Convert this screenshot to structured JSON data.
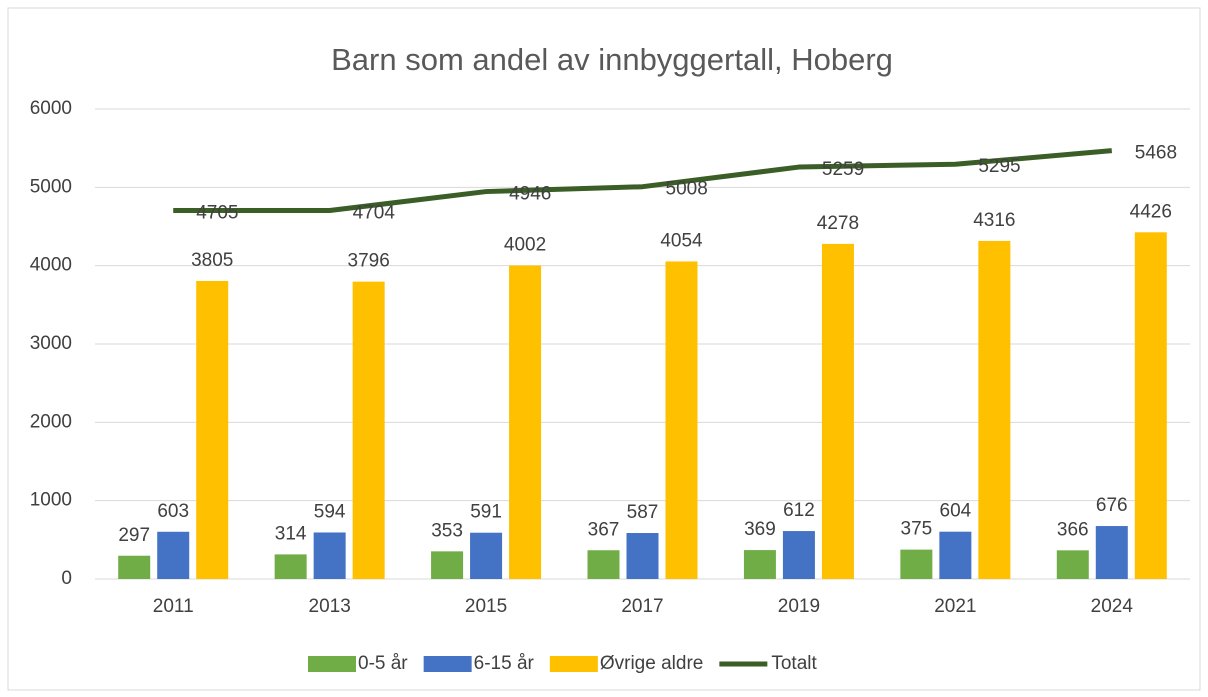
{
  "chart_data": {
    "type": "bar",
    "title": "Barn som andel av innbyggertall, Hoberg",
    "categories": [
      "2011",
      "2013",
      "2015",
      "2017",
      "2019",
      "2021",
      "2024"
    ],
    "series": [
      {
        "name": "0-5 år",
        "color": "#70ad47",
        "values": [
          297,
          314,
          353,
          367,
          369,
          375,
          366
        ]
      },
      {
        "name": "6-15 år",
        "color": "#4472c4",
        "values": [
          603,
          594,
          591,
          587,
          612,
          604,
          676
        ]
      },
      {
        "name": "Øvrige aldre",
        "color": "#ffc000",
        "values": [
          3805,
          3796,
          4002,
          4054,
          4278,
          4316,
          4426
        ]
      },
      {
        "name": "Totalt",
        "type": "line",
        "color": "#3b5e27",
        "values": [
          4705,
          4704,
          4946,
          5008,
          5259,
          5295,
          5468
        ]
      }
    ],
    "ylim": [
      0,
      6000
    ],
    "yticks": [
      0,
      1000,
      2000,
      3000,
      4000,
      5000,
      6000
    ],
    "grid": true,
    "legend": "bottom"
  }
}
